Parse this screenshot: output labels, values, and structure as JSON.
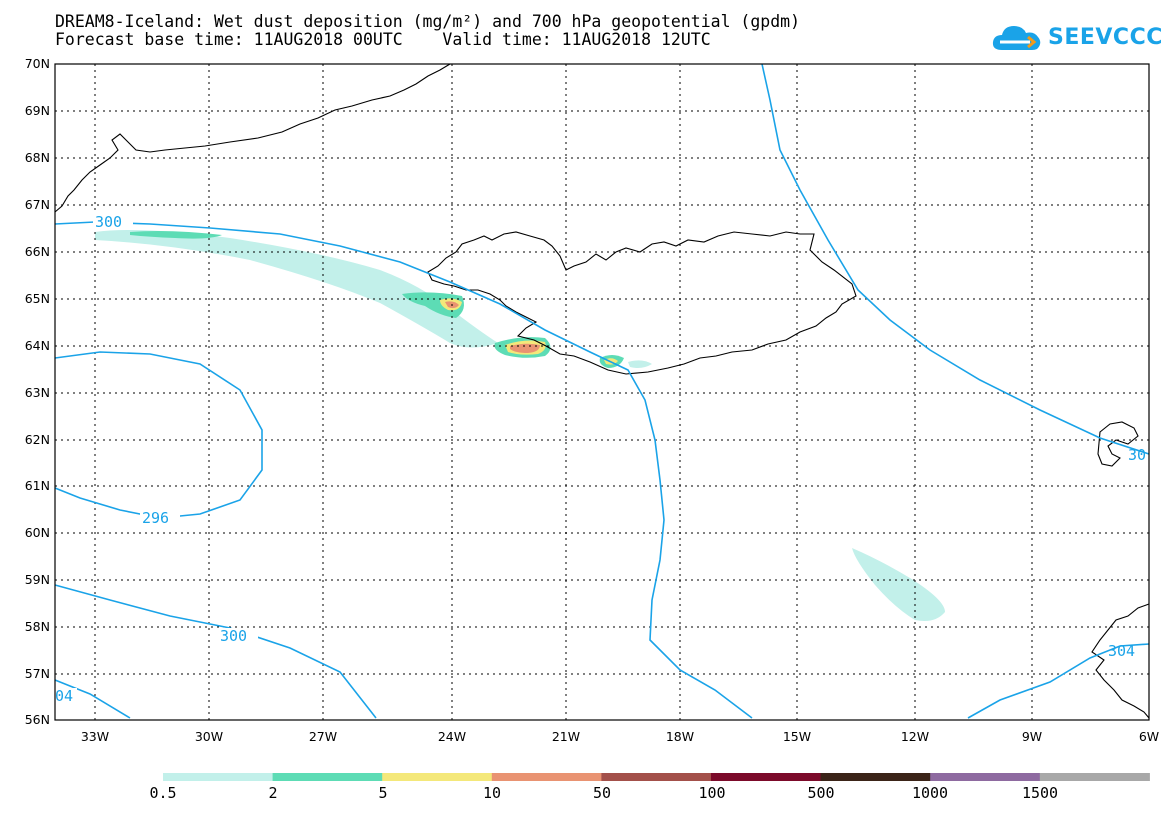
{
  "title_line1": "DREAM8-Iceland: Wet dust deposition (mg/m²) and 700 hPa geopotential (gpdm)",
  "title_line2": "Forecast base time: 11AUG2018 00UTC    Valid time: 11AUG2018 12UTC",
  "logo_text": "SEEVCCC",
  "map": {
    "lat_labels": [
      "70N",
      "69N",
      "68N",
      "67N",
      "66N",
      "65N",
      "64N",
      "63N",
      "62N",
      "61N",
      "60N",
      "59N",
      "58N",
      "57N",
      "56N"
    ],
    "lon_labels": [
      "33W",
      "30W",
      "27W",
      "24W",
      "21W",
      "18W",
      "15W",
      "12W",
      "9W",
      "6W"
    ],
    "contour_labels": [
      "300",
      "296",
      "300",
      "04",
      "30",
      "304"
    ],
    "contour_color": "#1aa3e8"
  },
  "colorbar": {
    "labels": [
      "0.5",
      "2",
      "5",
      "10",
      "50",
      "100",
      "500",
      "1000",
      "1500"
    ],
    "colors": [
      "#c2f0ea",
      "#5ddcb5",
      "#f4e87a",
      "#e99372",
      "#a3504a",
      "#7c0a2a",
      "#3b2418",
      "#8e6aa0",
      "#a8a8a8"
    ]
  }
}
